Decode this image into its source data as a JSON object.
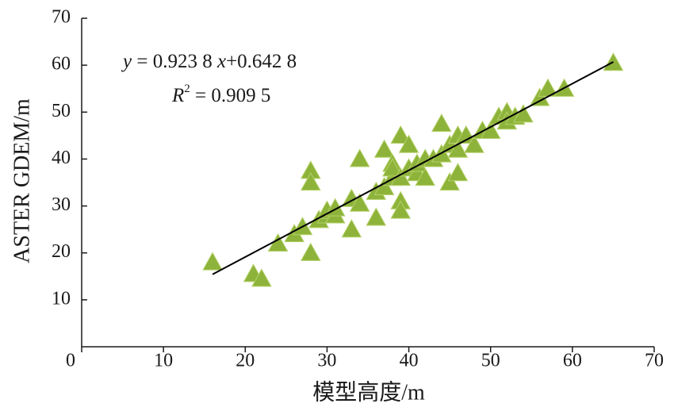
{
  "chart_data": {
    "type": "scatter",
    "x_label": "模型高度/m",
    "y_label": "ASTER GDEM/m",
    "equation": [
      "y",
      " = 0.923 8 ",
      "x",
      "+0.642 8"
    ],
    "r2": [
      "R",
      "2",
      " = 0.909 5"
    ],
    "fit": {
      "slope": 0.9238,
      "intercept": 0.6428,
      "x_range": [
        16,
        65
      ],
      "color": "#000000"
    },
    "color": "#8db33a",
    "x": [
      16,
      21,
      22,
      24,
      26,
      27,
      28,
      28,
      28,
      29,
      30,
      30,
      31,
      31,
      33,
      33,
      34,
      34,
      36,
      36,
      37,
      37,
      38,
      38,
      38,
      39,
      39,
      39,
      39,
      40,
      40,
      41,
      41,
      42,
      42,
      43,
      44,
      44,
      45,
      45,
      46,
      46,
      46,
      47,
      48,
      49,
      50,
      51,
      52,
      52,
      53,
      54,
      56,
      57,
      59,
      65
    ],
    "values": [
      18,
      15.5,
      14.5,
      22,
      24,
      25.5,
      37.5,
      35,
      20,
      27,
      28,
      29,
      28,
      29.5,
      25,
      31.5,
      40,
      30.5,
      27.5,
      33,
      34,
      42,
      39,
      36,
      38,
      45,
      31,
      29,
      36,
      43,
      38,
      37,
      39,
      36,
      40,
      40,
      47.5,
      41,
      43,
      35,
      37,
      45,
      42,
      45,
      43,
      46,
      46,
      49,
      50,
      48,
      49,
      49.5,
      53,
      55,
      55,
      60.5
    ],
    "xlim": [
      0,
      70
    ],
    "ylim": [
      0,
      70
    ],
    "xticks": [
      0,
      10,
      20,
      30,
      40,
      50,
      60,
      70
    ],
    "yticks": [
      10,
      20,
      30,
      40,
      50,
      60,
      70
    ]
  }
}
